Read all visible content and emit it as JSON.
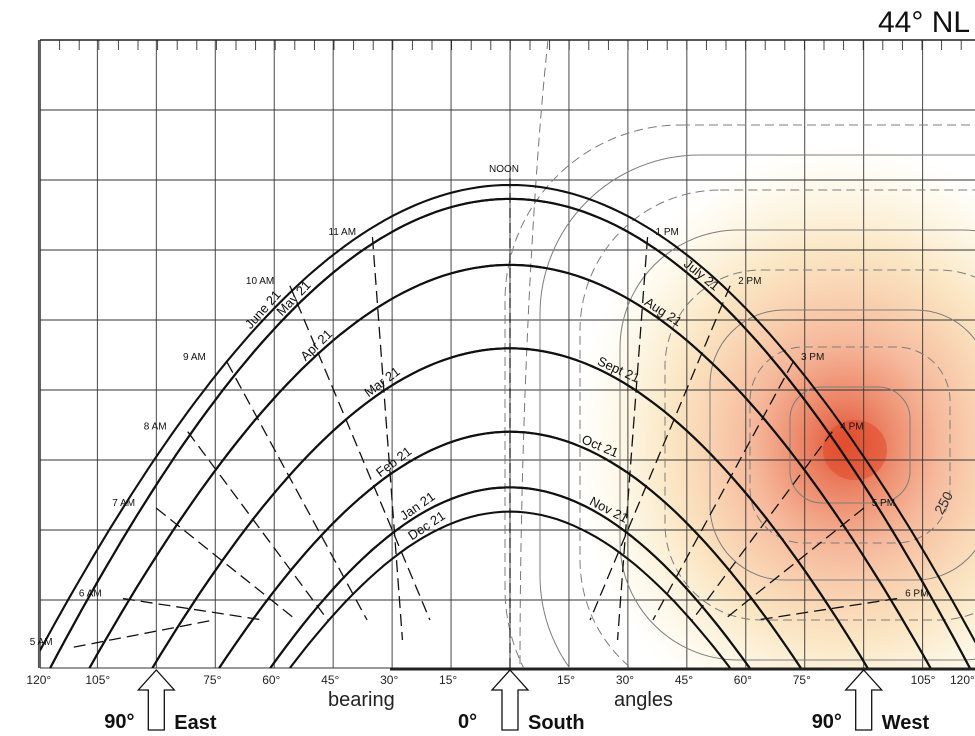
{
  "figure": {
    "title": "44° NL",
    "axis_words": {
      "left": "bearing",
      "right": "angles"
    },
    "direction_labels": [
      {
        "degree": "90°",
        "word": "East",
        "bearing": -90
      },
      {
        "degree": "0°",
        "word": "South",
        "bearing": 0
      },
      {
        "degree": "90°",
        "word": "West",
        "bearing": 90
      }
    ],
    "noon_label": "NOON",
    "isoline_label": "250",
    "colors": {
      "ink": "#111111",
      "grid": "#333333",
      "iso": "#8a8a8a",
      "hot_core": "#e0482a",
      "warm": "#f3a47a",
      "cool": "#f6df7a"
    }
  },
  "chart_data": {
    "type": "sun-path",
    "latitude": "44° NL",
    "x_axis": {
      "range": [
        -120,
        120
      ],
      "ticks": [
        {
          "v": -120,
          "label": "120°"
        },
        {
          "v": -105,
          "label": "105°"
        },
        {
          "v": -75,
          "label": "75°"
        },
        {
          "v": -60,
          "label": "60°"
        },
        {
          "v": -45,
          "label": "45°"
        },
        {
          "v": -30,
          "label": "30°"
        },
        {
          "v": -15,
          "label": "15°"
        },
        {
          "v": 15,
          "label": "15°"
        },
        {
          "v": 30,
          "label": "30°"
        },
        {
          "v": 45,
          "label": "45°"
        },
        {
          "v": 60,
          "label": "60°"
        },
        {
          "v": 75,
          "label": "75°"
        },
        {
          "v": 105,
          "label": "105°"
        },
        {
          "v": 120,
          "label": "120°"
        }
      ]
    },
    "date_curves": [
      {
        "name": "June 21",
        "label_bearing": -66,
        "noon_alt": 69.5,
        "rise": -122
      },
      {
        "name": "July 21",
        "label_bearing": 44,
        "noon_alt": 67.5,
        "rise": -117
      },
      {
        "name": "May 21",
        "label_bearing": -58,
        "noon_alt": 67.5,
        "rise": -117
      },
      {
        "name": "Aug 21",
        "label_bearing": 34,
        "noon_alt": 58,
        "rise": -107
      },
      {
        "name": "Apr 21",
        "label_bearing": -52,
        "noon_alt": 58,
        "rise": -107
      },
      {
        "name": "Sept 21",
        "label_bearing": 22,
        "noon_alt": 46,
        "rise": -91
      },
      {
        "name": "Mar 21",
        "label_bearing": -36,
        "noon_alt": 46,
        "rise": -91
      },
      {
        "name": "Oct 21",
        "label_bearing": 18,
        "noon_alt": 34,
        "rise": -74
      },
      {
        "name": "Feb 21",
        "label_bearing": -33,
        "noon_alt": 34,
        "rise": -74
      },
      {
        "name": "Nov 21",
        "label_bearing": 20,
        "noon_alt": 26,
        "rise": -61
      },
      {
        "name": "Jan 21",
        "label_bearing": -27,
        "noon_alt": 26,
        "rise": -61
      },
      {
        "name": "Dec 21",
        "label_bearing": -25,
        "noon_alt": 22.5,
        "rise": -56
      }
    ],
    "hour_labels": [
      {
        "label": "5 AM",
        "b": -111,
        "a": 3
      },
      {
        "label": "6 AM",
        "b": -98.5,
        "a": 10
      },
      {
        "label": "7 AM",
        "b": -90,
        "a": 23
      },
      {
        "label": "8 AM",
        "b": -82,
        "a": 34
      },
      {
        "label": "9 AM",
        "b": -72,
        "a": 44
      },
      {
        "label": "10 AM",
        "b": -56,
        "a": 55
      },
      {
        "label": "11 AM",
        "b": -35,
        "a": 62
      },
      {
        "label": "1 PM",
        "b": 35,
        "a": 62
      },
      {
        "label": "2 PM",
        "b": 56,
        "a": 55
      },
      {
        "label": "3 PM",
        "b": 72,
        "a": 44
      },
      {
        "label": "4 PM",
        "b": 82,
        "a": 34
      },
      {
        "label": "5 PM",
        "b": 90,
        "a": 23
      },
      {
        "label": "6 PM",
        "b": 98.5,
        "a": 10
      }
    ]
  }
}
